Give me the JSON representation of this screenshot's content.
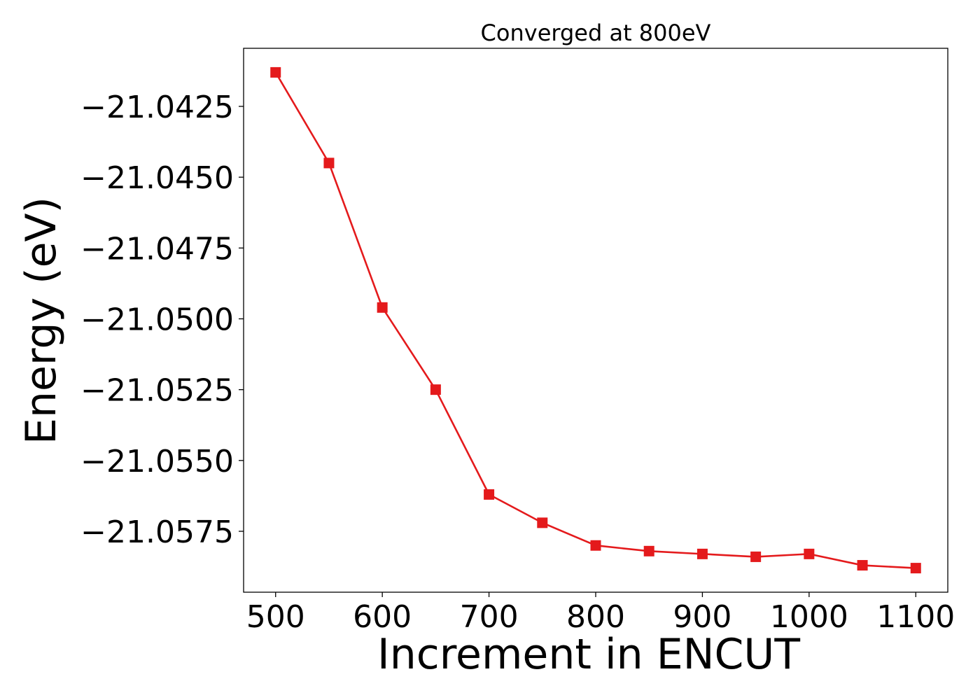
{
  "chart_data": {
    "type": "line",
    "title": "Converged at 800eV",
    "xlabel": "Increment in ENCUT",
    "ylabel": "Energy (eV)",
    "x": [
      500,
      550,
      600,
      650,
      700,
      750,
      800,
      850,
      900,
      950,
      1000,
      1050,
      1100
    ],
    "series": [
      {
        "color": "#e41a1c",
        "marker": "square",
        "values": [
          -21.0413,
          -21.0445,
          -21.0496,
          -21.0525,
          -21.0562,
          -21.0572,
          -21.058,
          -21.0582,
          -21.0583,
          -21.0584,
          -21.0583,
          -21.0587,
          -21.0588
        ]
      }
    ],
    "xlim": [
      470,
      1130
    ],
    "ylim": [
      -21.05965,
      -21.04045
    ],
    "xticks": [
      500,
      600,
      700,
      800,
      900,
      1000,
      1100
    ],
    "xtick_labels": [
      "500",
      "600",
      "700",
      "800",
      "900",
      "1000",
      "1100"
    ],
    "yticks": [
      -21.0425,
      -21.045,
      -21.0475,
      -21.05,
      -21.0525,
      -21.055,
      -21.0575
    ],
    "ytick_labels": [
      "−21.0425",
      "−21.0450",
      "−21.0475",
      "−21.0500",
      "−21.0525",
      "−21.0550",
      "−21.0575"
    ],
    "grid": false,
    "legend": "none"
  }
}
